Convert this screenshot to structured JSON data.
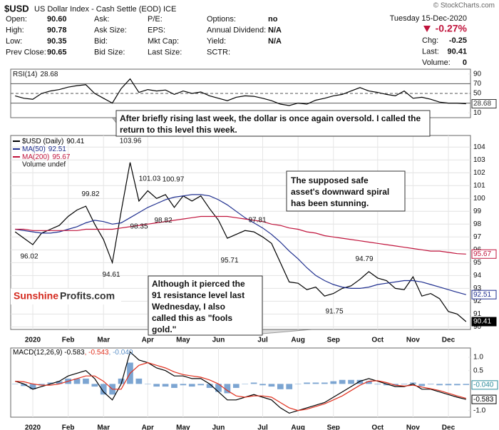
{
  "header": {
    "symbol": "$USD",
    "description": "US Dollar Index - Cash Settle (EOD) ICE",
    "copyright": "© StockCharts.com",
    "date": "Tuesday  15-Dec-2020",
    "change_pct": "-0.27%",
    "stats": [
      [
        [
          "Open:",
          "90.60"
        ],
        [
          "Ask:"
        ],
        [
          "P/E:"
        ],
        [
          "Options:",
          "no"
        ]
      ],
      [
        [
          "High:",
          "90.78"
        ],
        [
          "Ask Size:"
        ],
        [
          "EPS:"
        ],
        [
          "Annual Dividend:",
          "N/A"
        ]
      ],
      [
        [
          "Low:",
          "90.35"
        ],
        [
          "Bid:"
        ],
        [
          "Mkt Cap:"
        ],
        [
          "Yield:",
          "N/A"
        ]
      ],
      [
        [
          "Prev Close:",
          "90.65"
        ],
        [
          "Bid Size:"
        ],
        [
          "Last Size:"
        ],
        [
          "SCTR:"
        ]
      ]
    ],
    "quote": [
      [
        "Chg:",
        "-0.25"
      ],
      [
        "Last:",
        "90.41"
      ],
      [
        "Volume:",
        "0"
      ]
    ]
  },
  "chart_data": [
    {
      "type": "line",
      "categories": [
        null,
        null,
        "2020",
        null,
        null,
        null,
        "Feb",
        null,
        null,
        null,
        "Mar",
        null,
        null,
        null,
        null,
        "Apr",
        null,
        null,
        null,
        "May",
        null,
        null,
        null,
        "Jun",
        null,
        null,
        null,
        null,
        "Jul",
        null,
        null,
        null,
        "Aug",
        null,
        null,
        null,
        "Sep",
        null,
        null,
        null,
        null,
        "Oct",
        null,
        null,
        null,
        "Nov",
        null,
        null,
        null,
        "Dec",
        null,
        null
      ],
      "series": [
        {
          "name": "$USD (Daily)",
          "color": "#000000",
          "values": [
            97.4,
            96.9,
            96.4,
            97.3,
            97.6,
            97.9,
            98.6,
            99.1,
            99.4,
            98.0,
            96.8,
            95.0,
            99.0,
            102.8,
            99.8,
            100.6,
            100.0,
            100.3,
            99.3,
            100.2,
            99.8,
            100.2,
            99.2,
            98.3,
            96.9,
            97.2,
            97.5,
            97.4,
            97.0,
            96.5,
            95.0,
            93.5,
            93.4,
            92.9,
            93.1,
            92.4,
            92.6,
            93.0,
            93.2,
            93.7,
            94.3,
            93.8,
            93.6,
            93.0,
            92.9,
            93.9,
            92.4,
            92.6,
            92.2,
            91.2,
            91.0,
            90.41
          ]
        },
        {
          "name": "MA(50)",
          "color": "#1f2f8f",
          "values": [
            97.6,
            97.5,
            97.4,
            97.3,
            97.3,
            97.4,
            97.6,
            97.8,
            98.1,
            98.3,
            98.2,
            98.0,
            98.1,
            98.5,
            98.9,
            99.3,
            99.6,
            99.9,
            100.1,
            100.2,
            100.3,
            100.3,
            100.2,
            99.9,
            99.5,
            99.0,
            98.5,
            98.1,
            97.7,
            97.2,
            96.6,
            95.9,
            95.3,
            94.6,
            94.0,
            93.6,
            93.3,
            93.1,
            93.0,
            93.0,
            93.1,
            93.3,
            93.4,
            93.5,
            93.6,
            93.6,
            93.5,
            93.3,
            93.1,
            92.9,
            92.7,
            92.51
          ]
        },
        {
          "name": "MA(200)",
          "color": "#c0143c",
          "values": [
            97.6,
            97.6,
            97.5,
            97.5,
            97.5,
            97.5,
            97.5,
            97.5,
            97.6,
            97.6,
            97.6,
            97.6,
            97.7,
            97.8,
            97.9,
            98.0,
            98.1,
            98.2,
            98.3,
            98.4,
            98.5,
            98.6,
            98.6,
            98.6,
            98.6,
            98.5,
            98.4,
            98.3,
            98.2,
            98.0,
            97.9,
            97.7,
            97.6,
            97.4,
            97.3,
            97.1,
            97.0,
            96.9,
            96.8,
            96.7,
            96.6,
            96.5,
            96.4,
            96.3,
            96.2,
            96.1,
            96.0,
            95.9,
            95.9,
            95.8,
            95.7,
            95.67
          ]
        }
      ],
      "extra_legend": "Volume undef",
      "ylim": [
        89.8,
        104.9
      ],
      "yticks": [
        90,
        91,
        92,
        93,
        94,
        95,
        96,
        97,
        98,
        99,
        100,
        101,
        102,
        103,
        104
      ],
      "grid": true,
      "peak_labels": [
        103.96,
        101.03,
        100.97,
        99.82,
        98.35,
        98.82,
        96.02,
        94.61,
        95.71,
        97.81,
        94.79,
        91.75
      ]
    },
    {
      "type": "line",
      "series": [
        {
          "name": "RSI(14)",
          "color": "#000000",
          "values": [
            45,
            40,
            38,
            50,
            55,
            58,
            63,
            66,
            68,
            50,
            40,
            30,
            60,
            80,
            52,
            58,
            55,
            57,
            48,
            55,
            50,
            53,
            45,
            40,
            35,
            42,
            45,
            44,
            40,
            35,
            28,
            25,
            30,
            28,
            36,
            40,
            45,
            48,
            55,
            62,
            55,
            52,
            48,
            45,
            55,
            40,
            42,
            38,
            32,
            30,
            30,
            28.68
          ]
        }
      ],
      "ylim": [
        0,
        100
      ],
      "yticks": [
        10,
        30,
        50,
        70,
        90
      ],
      "reference_lines": [
        30,
        50,
        70
      ]
    },
    {
      "type": "line",
      "categories": [
        null,
        null,
        "2020",
        null,
        null,
        null,
        "Feb",
        null,
        null,
        null,
        "Mar",
        null,
        null,
        null,
        null,
        "Apr",
        null,
        null,
        null,
        "May",
        null,
        null,
        null,
        "Jun",
        null,
        null,
        null,
        null,
        "Jul",
        null,
        null,
        null,
        "Aug",
        null,
        null,
        null,
        "Sep",
        null,
        null,
        null,
        null,
        "Oct",
        null,
        null,
        null,
        "Nov",
        null,
        null,
        null,
        "Dec",
        null,
        null
      ],
      "legend_text": [
        "MACD(12,26,9) -0.583",
        ", -0.543",
        ", -0.040"
      ],
      "series": [
        {
          "color": "#000000",
          "values": [
            0.1,
            0.0,
            -0.2,
            -0.1,
            0.0,
            0.1,
            0.3,
            0.4,
            0.5,
            0.2,
            -0.3,
            -0.6,
            0.0,
            1.2,
            0.9,
            0.8,
            0.6,
            0.5,
            0.3,
            0.3,
            0.2,
            0.2,
            0.0,
            -0.3,
            -0.6,
            -0.6,
            -0.5,
            -0.4,
            -0.5,
            -0.6,
            -0.9,
            -1.1,
            -1.0,
            -0.9,
            -0.8,
            -0.7,
            -0.5,
            -0.3,
            -0.1,
            0.1,
            0.2,
            0.1,
            0.0,
            -0.1,
            -0.1,
            0.0,
            -0.2,
            -0.2,
            -0.3,
            -0.4,
            -0.5,
            -0.583
          ]
        },
        {
          "color": "#e0301e",
          "values": [
            0.1,
            0.08,
            0.0,
            -0.05,
            -0.05,
            0.0,
            0.1,
            0.2,
            0.3,
            0.3,
            0.1,
            -0.2,
            -0.2,
            0.4,
            0.7,
            0.8,
            0.7,
            0.6,
            0.45,
            0.35,
            0.3,
            0.25,
            0.15,
            0.0,
            -0.25,
            -0.45,
            -0.5,
            -0.45,
            -0.45,
            -0.5,
            -0.7,
            -0.9,
            -1.0,
            -0.95,
            -0.85,
            -0.75,
            -0.6,
            -0.45,
            -0.25,
            -0.05,
            0.1,
            0.12,
            0.05,
            -0.05,
            -0.08,
            -0.05,
            -0.12,
            -0.18,
            -0.25,
            -0.35,
            -0.45,
            -0.543
          ]
        },
        {
          "type": "bar",
          "color": "#5b8fc7",
          "last_label": "-0.040",
          "values": [
            0.0,
            -0.08,
            -0.2,
            -0.05,
            0.05,
            0.1,
            0.2,
            0.2,
            0.2,
            -0.1,
            -0.4,
            -0.4,
            0.2,
            0.8,
            0.2,
            0.0,
            -0.1,
            -0.1,
            -0.15,
            -0.05,
            -0.1,
            -0.05,
            -0.15,
            -0.3,
            -0.35,
            -0.15,
            0.0,
            0.05,
            -0.05,
            -0.1,
            -0.2,
            -0.2,
            0.0,
            0.05,
            0.05,
            0.05,
            0.1,
            0.15,
            0.15,
            0.15,
            0.1,
            -0.02,
            -0.05,
            -0.05,
            -0.02,
            0.05,
            -0.08,
            -0.02,
            -0.05,
            -0.05,
            -0.05,
            -0.04
          ]
        }
      ],
      "ylim": [
        -1.25,
        1.35
      ],
      "yticks": [
        {
          "value": -1,
          "label": "-1.0"
        },
        {
          "value": 0.5,
          "label": "0.5"
        },
        {
          "value": 1,
          "label": "1.0"
        }
      ]
    }
  ],
  "annotations": [
    {
      "lines": [
        "After briefly rising last week, the dollar is once again oversold. I called the",
        "return to this level this week."
      ]
    },
    {
      "lines": [
        "The supposed safe",
        "asset's downward spiral",
        "has been stunning."
      ]
    },
    {
      "lines": [
        "Although it pierced the",
        "91 resistance level last",
        "Wednesday, I also",
        "called this as \"fools",
        "gold.\""
      ]
    }
  ],
  "logo": [
    "Sunshine",
    "Profits.com"
  ]
}
